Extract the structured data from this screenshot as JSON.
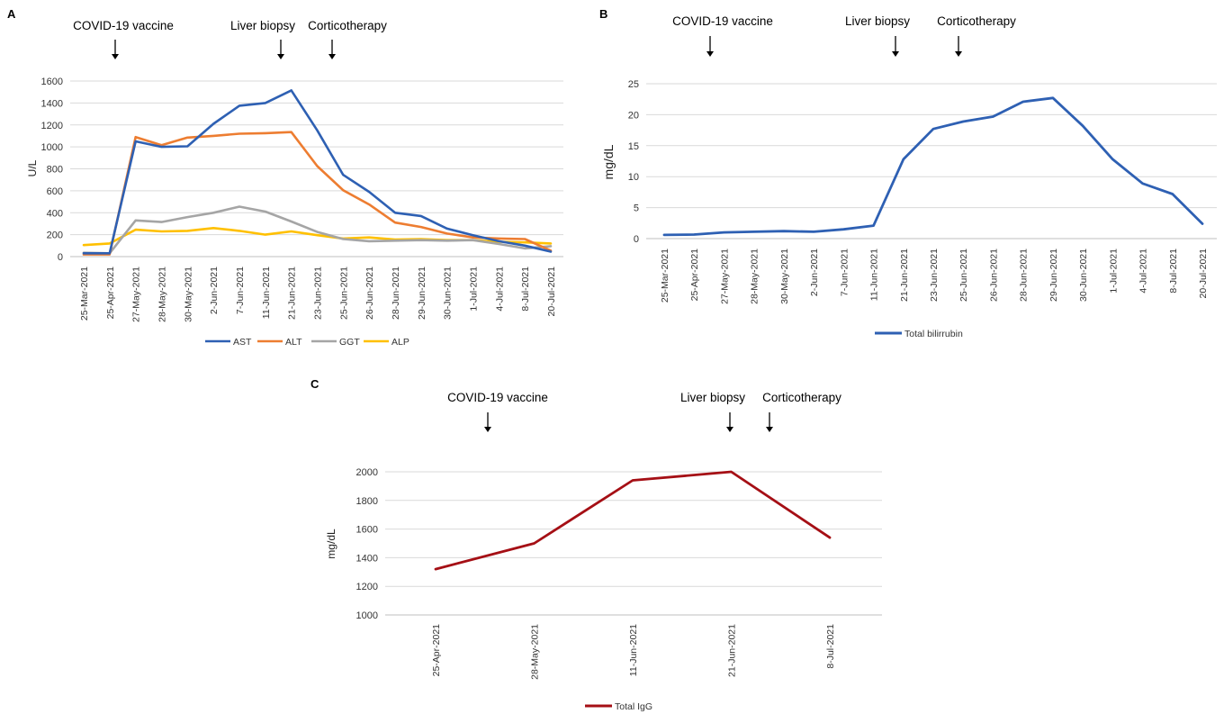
{
  "chart_data": [
    {
      "panel": "A",
      "type": "line",
      "ylabel": "U/L",
      "ylim": [
        0,
        1600
      ],
      "yticks": [
        0,
        200,
        400,
        600,
        800,
        1000,
        1200,
        1400,
        1600
      ],
      "grid": true,
      "legend": "bottom",
      "categories": [
        "25-Mar-2021",
        "25-Apr-2021",
        "27-May-2021",
        "28-May-2021",
        "30-May-2021",
        "2-Jun-2021",
        "7-Jun-2021",
        "11-Jun-2021",
        "21-Jun-2021",
        "23-Jun-2021",
        "25-Jun-2021",
        "26-Jun-2021",
        "28-Jun-2021",
        "29-Jun-2021",
        "30-Jun-2021",
        "1-Jul-2021",
        "4-Jul-2021",
        "8-Jul-2021",
        "20-Jul-2021"
      ],
      "series": [
        {
          "name": "AST",
          "color": "#2e60b3",
          "values": [
            30,
            30,
            1050,
            1000,
            1005,
            1210,
            1375,
            1400,
            1515,
            1150,
            745,
            590,
            400,
            370,
            255,
            195,
            140,
            100,
            45
          ]
        },
        {
          "name": "ALT",
          "color": "#ed7d31",
          "values": [
            20,
            20,
            1090,
            1015,
            1085,
            1100,
            1120,
            1125,
            1135,
            825,
            605,
            475,
            310,
            270,
            210,
            175,
            165,
            160,
            55
          ]
        },
        {
          "name": "GGT",
          "color": "#a5a5a5",
          "values": [
            35,
            30,
            330,
            315,
            360,
            400,
            455,
            410,
            320,
            225,
            160,
            140,
            145,
            150,
            145,
            150,
            115,
            75,
            95
          ]
        },
        {
          "name": "ALP",
          "color": "#ffc000",
          "values": [
            105,
            120,
            245,
            230,
            235,
            260,
            235,
            200,
            230,
            195,
            165,
            175,
            155,
            160,
            150,
            150,
            135,
            130,
            120
          ]
        }
      ],
      "annotations": [
        {
          "text": "COVID-19 vaccine",
          "after_category": "25-Apr-2021"
        },
        {
          "text": "Liver biopsy",
          "after_category": "11-Jun-2021"
        },
        {
          "text": "Corticotherapy",
          "after_category": "21-Jun-2021"
        }
      ]
    },
    {
      "panel": "B",
      "type": "line",
      "ylabel": "mg/dL",
      "ylim": [
        0,
        25
      ],
      "yticks": [
        0,
        5,
        10,
        15,
        20,
        25
      ],
      "grid": true,
      "legend": "bottom",
      "categories": [
        "25-Mar-2021",
        "25-Apr-2021",
        "27-May-2021",
        "28-May-2021",
        "30-May-2021",
        "2-Jun-2021",
        "7-Jun-2021",
        "11-Jun-2021",
        "21-Jun-2021",
        "23-Jun-2021",
        "25-Jun-2021",
        "26-Jun-2021",
        "28-Jun-2021",
        "29-Jun-2021",
        "30-Jun-2021",
        "1-Jul-2021",
        "4-Jul-2021",
        "8-Jul-2021",
        "20-Jul-2021"
      ],
      "series": [
        {
          "name": "Total bilirrubin",
          "color": "#2e60b3",
          "values": [
            0.6,
            0.65,
            1.0,
            1.1,
            1.2,
            1.1,
            1.5,
            2.1,
            12.8,
            17.7,
            18.9,
            19.7,
            22.1,
            22.7,
            18.2,
            12.8,
            8.9,
            7.2,
            2.4
          ]
        }
      ],
      "annotations": [
        {
          "text": "COVID-19 vaccine",
          "after_category": "25-Apr-2021"
        },
        {
          "text": "Liver biopsy",
          "after_category": "11-Jun-2021"
        },
        {
          "text": "Corticotherapy",
          "after_category": "23-Jun-2021"
        }
      ]
    },
    {
      "panel": "C",
      "type": "line",
      "ylabel": "mg/dL",
      "ylim": [
        1000,
        2000
      ],
      "yticks": [
        1000,
        1200,
        1400,
        1600,
        1800,
        2000
      ],
      "grid": true,
      "legend": "bottom",
      "categories": [
        "25-Apr-2021",
        "28-May-2021",
        "11-Jun-2021",
        "21-Jun-2021",
        "8-Jul-2021"
      ],
      "series": [
        {
          "name": "Total IgG",
          "color": "#a50f15",
          "values": [
            1320,
            1500,
            1940,
            2000,
            1540
          ]
        }
      ],
      "annotations": [
        {
          "text": "COVID-19 vaccine",
          "after_category": "25-Apr-2021"
        },
        {
          "text": "Liver biopsy",
          "after_category": "21-Jun-2021"
        },
        {
          "text": "Corticotherapy",
          "after_category": "21-Jun-2021"
        }
      ]
    }
  ]
}
